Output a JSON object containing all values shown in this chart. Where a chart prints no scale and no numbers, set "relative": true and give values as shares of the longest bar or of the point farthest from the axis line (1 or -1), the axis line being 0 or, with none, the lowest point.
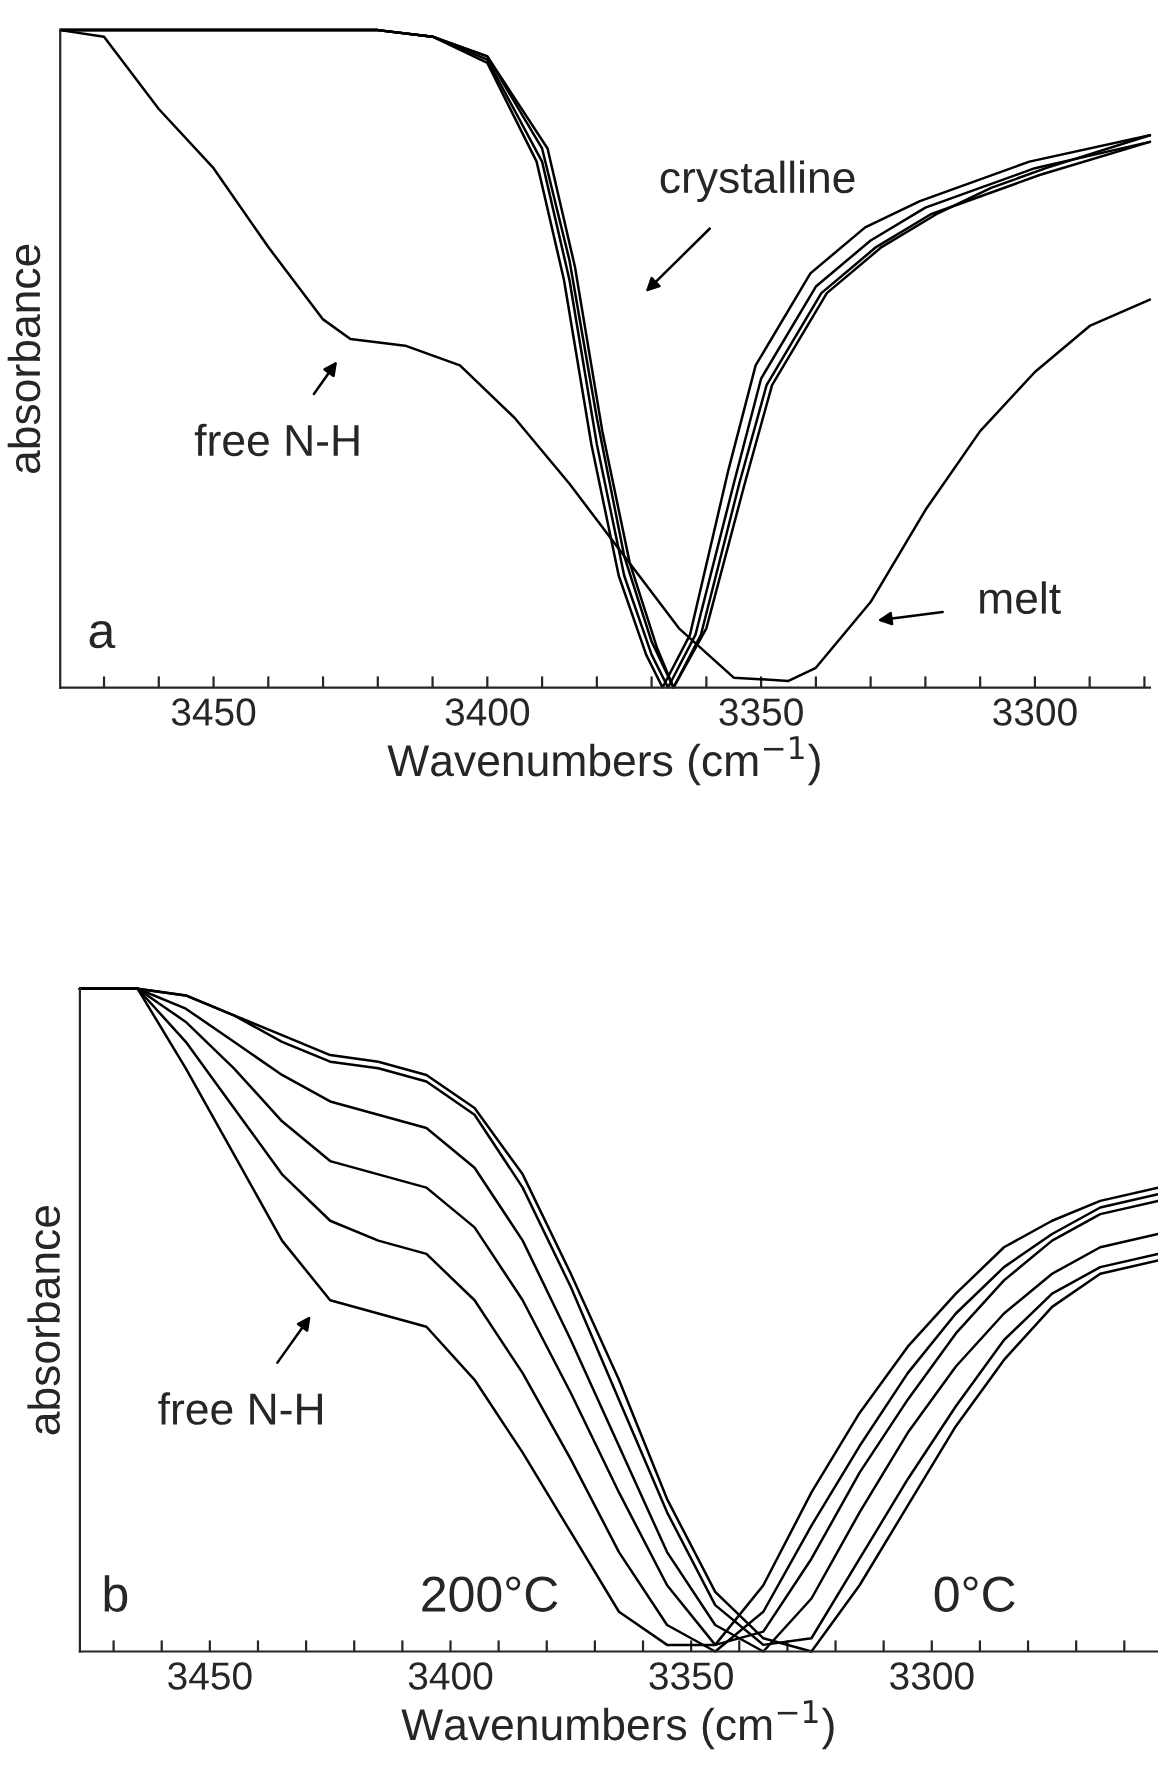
{
  "chart_data": [
    {
      "type": "line",
      "relative": true,
      "xlabel": "Wavenumbers (cm$^{−1}$)",
      "ylabel": "absorbance",
      "xlim": [
        3478,
        3279
      ],
      "xticks": [
        {
          "value": 3470,
          "label": null
        },
        {
          "value": 3460,
          "label": null
        },
        3450,
        {
          "value": 3440,
          "label": null
        },
        {
          "value": 3430,
          "label": null
        },
        {
          "value": 3420,
          "label": null
        },
        {
          "value": 3410,
          "label": null
        },
        3400,
        {
          "value": 3390,
          "label": null
        },
        {
          "value": 3380,
          "label": null
        },
        {
          "value": 3370,
          "label": null
        },
        {
          "value": 3360,
          "label": null
        },
        3350,
        {
          "value": 3340,
          "label": null
        },
        {
          "value": 3330,
          "label": null
        },
        {
          "value": 3320,
          "label": null
        },
        {
          "value": 3310,
          "label": null
        },
        3300,
        {
          "value": 3290,
          "label": null
        },
        {
          "value": 3280,
          "label": null
        }
      ],
      "marker": "none",
      "line_style": "solid",
      "series": [
        {
          "color": "#000000",
          "x": [
            3478,
            3440,
            3420,
            3410,
            3400,
            3390,
            3385,
            3380,
            3375,
            3370,
            3367,
            3362,
            3355,
            3350,
            3340,
            3330,
            3320,
            3310,
            3300,
            3279
          ],
          "values": [
            1,
            1,
            1,
            0.99,
            0.955,
            0.8,
            0.62,
            0.37,
            0.17,
            0.05,
            0,
            0.08,
            0.31,
            0.47,
            0.61,
            0.68,
            0.73,
            0.76,
            0.79,
            0.83
          ]
        },
        {
          "color": "#000000",
          "x": [
            3478,
            3440,
            3420,
            3410,
            3400,
            3390,
            3385,
            3380,
            3375,
            3370,
            3366,
            3361,
            3354,
            3349,
            3339,
            3329,
            3319,
            3309,
            3299,
            3279
          ],
          "values": [
            1,
            1,
            1,
            0.99,
            0.96,
            0.82,
            0.65,
            0.41,
            0.2,
            0.07,
            0,
            0.08,
            0.31,
            0.46,
            0.6,
            0.67,
            0.72,
            0.75,
            0.78,
            0.83
          ]
        },
        {
          "color": "#000000",
          "x": [
            3478,
            3440,
            3420,
            3410,
            3400,
            3391,
            3386,
            3381,
            3376,
            3371,
            3368,
            3363,
            3356,
            3351,
            3341,
            3331,
            3321,
            3311,
            3301,
            3279
          ],
          "values": [
            1,
            1,
            1,
            0.99,
            0.95,
            0.8,
            0.62,
            0.37,
            0.17,
            0.05,
            0,
            0.08,
            0.33,
            0.49,
            0.63,
            0.7,
            0.74,
            0.77,
            0.8,
            0.84
          ]
        },
        {
          "color": "#000000",
          "x": [
            3478,
            3440,
            3420,
            3410,
            3400,
            3389,
            3384,
            3379,
            3374,
            3369,
            3366,
            3360,
            3353,
            3348,
            3338,
            3328,
            3318,
            3308,
            3298,
            3279
          ],
          "values": [
            1,
            1,
            1,
            0.99,
            0.96,
            0.82,
            0.64,
            0.39,
            0.19,
            0.06,
            0,
            0.09,
            0.31,
            0.46,
            0.6,
            0.67,
            0.72,
            0.76,
            0.79,
            0.84
          ]
        },
        {
          "color": "#000000",
          "x": [
            3478,
            3470,
            3460,
            3450,
            3440,
            3430,
            3425,
            3415,
            3405,
            3395,
            3385,
            3375,
            3365,
            3355,
            3345,
            3340,
            3330,
            3320,
            3310,
            3300,
            3290,
            3279
          ],
          "values": [
            1,
            0.99,
            0.88,
            0.79,
            0.67,
            0.56,
            0.53,
            0.52,
            0.49,
            0.41,
            0.31,
            0.2,
            0.09,
            0.015,
            0.01,
            0.03,
            0.13,
            0.27,
            0.39,
            0.48,
            0.55,
            0.59
          ]
        }
      ],
      "annotations": [
        "crystalline",
        "free N-H",
        "melt",
        "a"
      ]
    },
    {
      "type": "line",
      "relative": true,
      "xlabel": "Wavenumbers (cm$^{−1}$)",
      "ylabel": "absorbance",
      "xlim": [
        3477,
        3253
      ],
      "xticks": [
        {
          "value": 3470,
          "label": null
        },
        {
          "value": 3460,
          "label": null
        },
        3450,
        {
          "value": 3440,
          "label": null
        },
        {
          "value": 3430,
          "label": null
        },
        {
          "value": 3420,
          "label": null
        },
        {
          "value": 3410,
          "label": null
        },
        3400,
        {
          "value": 3390,
          "label": null
        },
        {
          "value": 3380,
          "label": null
        },
        {
          "value": 3370,
          "label": null
        },
        {
          "value": 3360,
          "label": null
        },
        3350,
        {
          "value": 3340,
          "label": null
        },
        {
          "value": 3330,
          "label": null
        },
        {
          "value": 3320,
          "label": null
        },
        {
          "value": 3310,
          "label": null
        },
        3300,
        {
          "value": 3290,
          "label": null
        },
        {
          "value": 3280,
          "label": null
        },
        {
          "value": 3270,
          "label": null
        },
        {
          "value": 3260,
          "label": null
        }
      ],
      "marker": "none",
      "line_style": "solid",
      "x": [
        3477,
        3465,
        3455,
        3445,
        3435,
        3425,
        3415,
        3405,
        3395,
        3385,
        3375,
        3365,
        3355,
        3345,
        3335,
        3325,
        3315,
        3305,
        3295,
        3285,
        3275,
        3265,
        3253
      ],
      "series": [
        {
          "color": "#000000",
          "values": [
            1,
            1,
            0.88,
            0.75,
            0.62,
            0.53,
            0.51,
            0.49,
            0.41,
            0.3,
            0.18,
            0.06,
            0.01,
            0.01,
            0.1,
            0.24,
            0.36,
            0.46,
            0.54,
            0.61,
            0.65,
            0.68,
            0.7
          ]
        },
        {
          "color": "#000000",
          "values": [
            1,
            1,
            0.92,
            0.82,
            0.72,
            0.65,
            0.62,
            0.6,
            0.53,
            0.42,
            0.29,
            0.15,
            0.04,
            0,
            0.06,
            0.19,
            0.31,
            0.42,
            0.51,
            0.58,
            0.63,
            0.67,
            0.69
          ]
        },
        {
          "color": "#000000",
          "values": [
            1,
            1,
            0.95,
            0.88,
            0.8,
            0.74,
            0.72,
            0.7,
            0.64,
            0.53,
            0.39,
            0.24,
            0.1,
            0.01,
            0.03,
            0.14,
            0.27,
            0.38,
            0.48,
            0.56,
            0.62,
            0.66,
            0.68
          ]
        },
        {
          "color": "#000000",
          "values": [
            1,
            1,
            0.97,
            0.92,
            0.87,
            0.83,
            0.81,
            0.79,
            0.73,
            0.62,
            0.47,
            0.31,
            0.15,
            0.04,
            0,
            0.08,
            0.21,
            0.33,
            0.43,
            0.51,
            0.57,
            0.61,
            0.63
          ]
        },
        {
          "color": "#000000",
          "values": [
            1,
            1,
            0.99,
            0.96,
            0.92,
            0.89,
            0.88,
            0.86,
            0.81,
            0.7,
            0.55,
            0.38,
            0.21,
            0.07,
            0.01,
            0.02,
            0.14,
            0.26,
            0.37,
            0.47,
            0.54,
            0.58,
            0.6
          ]
        },
        {
          "color": "#000000",
          "values": [
            1,
            1,
            0.99,
            0.96,
            0.93,
            0.9,
            0.89,
            0.87,
            0.82,
            0.72,
            0.57,
            0.41,
            0.23,
            0.09,
            0.02,
            0,
            0.1,
            0.22,
            0.34,
            0.44,
            0.52,
            0.57,
            0.59
          ]
        }
      ],
      "annotations": [
        "free N-H",
        "b",
        "200°C",
        "0°C"
      ]
    }
  ]
}
